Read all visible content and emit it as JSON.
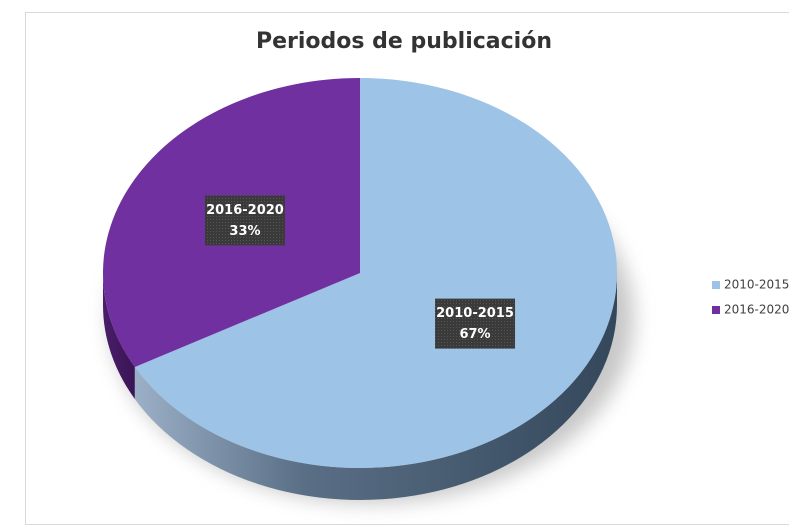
{
  "chart_data": {
    "type": "pie",
    "title": "Periodos de publicación",
    "categories": [
      "2010-2015",
      "2016-2020"
    ],
    "values": [
      67,
      33
    ],
    "value_labels": [
      "67%",
      "33%"
    ],
    "colors": [
      "#9dc3e6",
      "#7030a0"
    ],
    "legend": "right"
  }
}
